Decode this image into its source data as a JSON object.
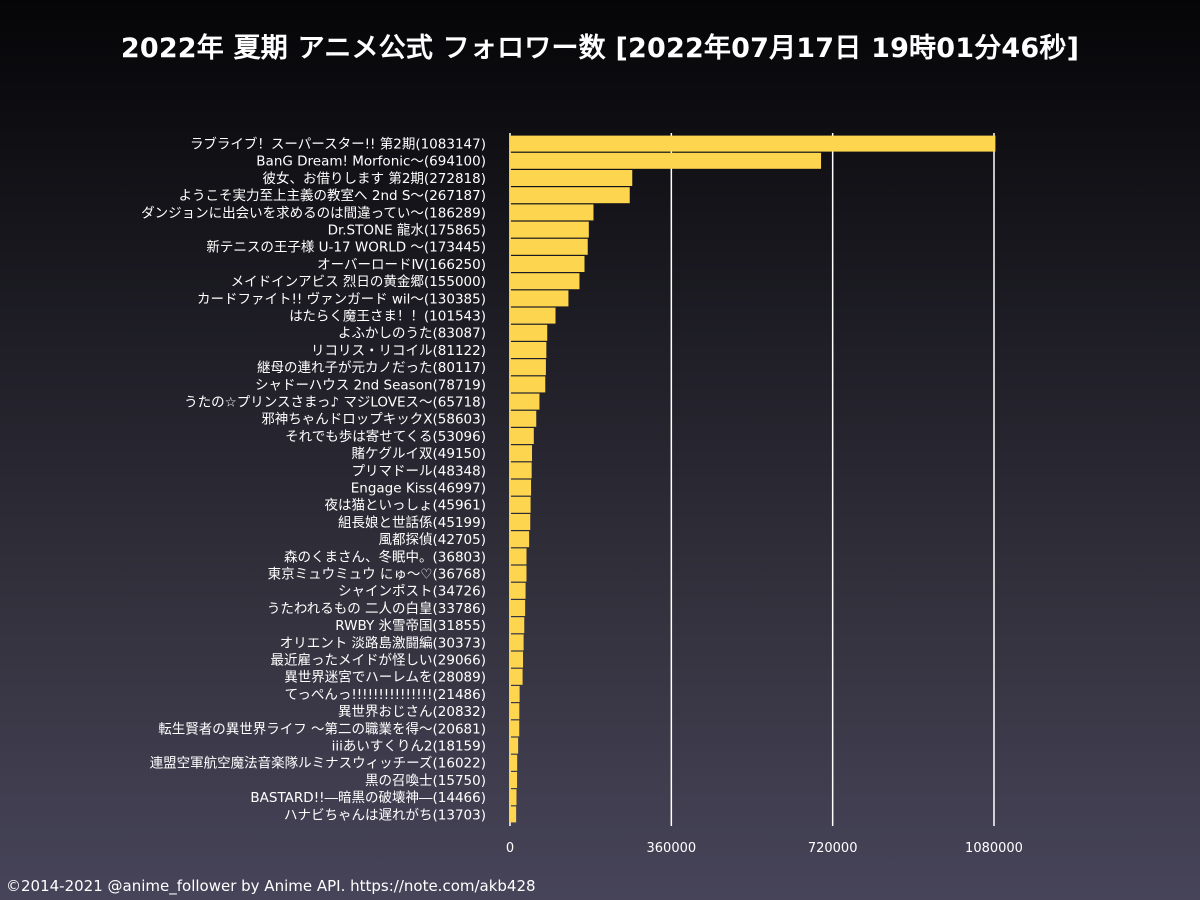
{
  "title": "2022年 夏期 アニメ公式 フォロワー数 [2022年07月17日 19時01分46秒]",
  "footer": "©2014-2021 @anime_follower by Anime API. https://note.com/akb428",
  "colors": {
    "bar": "#fdd54f",
    "grid": "#ffffff"
  },
  "chart_data": {
    "type": "bar",
    "orientation": "horizontal",
    "xlim": [
      0,
      1080000
    ],
    "xticks": [
      0,
      360000,
      720000,
      1080000
    ],
    "xtick_labels": [
      "0",
      "360000",
      "720000",
      "1080000"
    ],
    "grid": "vertical",
    "categories": [
      "ラブライブ！スーパースター!! 第2期(1083147)",
      "BanG Dream! Morfonic～(694100)",
      "彼女、お借りします 第2期(272818)",
      "ようこそ実力至上主義の教室へ 2nd S～(267187)",
      "ダンジョンに出会いを求めるのは間違ってい～(186289)",
      "Dr.STONE 龍水(175865)",
      "新テニスの王子様 U-17 WORLD ～(173445)",
      "オーバーロードⅣ(166250)",
      "メイドインアビス 烈日の黄金郷(155000)",
      "カードファイト!! ヴァンガード wil～(130385)",
      "はたらく魔王さま！！(101543)",
      "よふかしのうた(83087)",
      "リコリス・リコイル(81122)",
      "継母の連れ子が元カノだった(80117)",
      "シャドーハウス 2nd Season(78719)",
      "うたの☆プリンスさまっ♪ マジLOVEス～(65718)",
      "邪神ちゃんドロップキックX(58603)",
      "それでも歩は寄せてくる(53096)",
      "賭ケグルイ双(49150)",
      "プリマドール(48348)",
      "Engage Kiss(46997)",
      "夜は猫といっしょ(45961)",
      "組長娘と世話係(45199)",
      "風都探偵(42705)",
      "森のくまさん、冬眠中。(36803)",
      "東京ミュウミュウ にゅ～♡(36768)",
      "シャインポスト(34726)",
      "うたわれるもの 二人の白皇(33786)",
      "RWBY 氷雪帝国(31855)",
      "オリエント 淡路島激闘編(30373)",
      "最近雇ったメイドが怪しい(29066)",
      "異世界迷宮でハーレムを(28089)",
      "てっぺんっ!!!!!!!!!!!!!!!(21486)",
      "異世界おじさん(20832)",
      "転生賢者の異世界ライフ ～第二の職業を得～(20681)",
      "iiiあいすくりん2(18159)",
      "連盟空軍航空魔法音楽隊ルミナスウィッチーズ(16022)",
      "黒の召喚士(15750)",
      "BASTARD!!―暗黒の破壊神―(14466)",
      "ハナビちゃんは遅れがち(13703)"
    ],
    "values": [
      1083147,
      694100,
      272818,
      267187,
      186289,
      175865,
      173445,
      166250,
      155000,
      130385,
      101543,
      83087,
      81122,
      80117,
      78719,
      65718,
      58603,
      53096,
      49150,
      48348,
      46997,
      45961,
      45199,
      42705,
      36803,
      36768,
      34726,
      33786,
      31855,
      30373,
      29066,
      28089,
      21486,
      20832,
      20681,
      18159,
      16022,
      15750,
      14466,
      13703
    ]
  }
}
